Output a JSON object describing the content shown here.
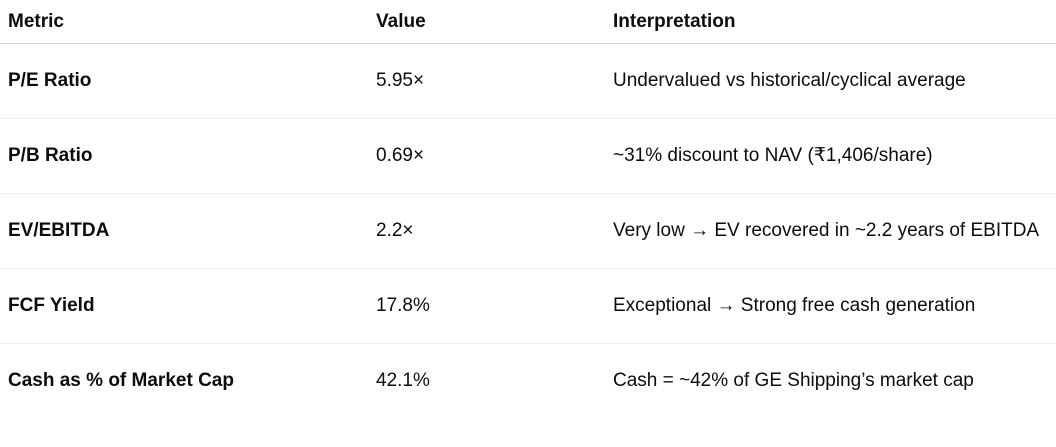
{
  "table": {
    "columns": [
      {
        "label": "Metric"
      },
      {
        "label": "Value"
      },
      {
        "label": "Interpretation"
      }
    ],
    "rows": [
      {
        "metric": "P/E Ratio",
        "value": "5.95×",
        "interpretation": "Undervalued vs historical/cyclical average"
      },
      {
        "metric": "P/B Ratio",
        "value": "0.69×",
        "interpretation": "~31% discount to NAV (₹1,406/share)"
      },
      {
        "metric": "EV/EBITDA",
        "value": "2.2×",
        "interpretation": "Very low → EV recovered in ~2.2 years of EBITDA"
      },
      {
        "metric": "FCF Yield",
        "value": "17.8%",
        "interpretation": "Exceptional → Strong free cash generation"
      },
      {
        "metric": "Cash as % of Market Cap",
        "value": "42.1%",
        "interpretation": "Cash = ~42% of GE Shipping’s market cap"
      }
    ],
    "colors": {
      "text": "#0d0d0d",
      "header_border": "#d4d4d4",
      "row_border": "#ededed",
      "background": "#ffffff"
    }
  }
}
